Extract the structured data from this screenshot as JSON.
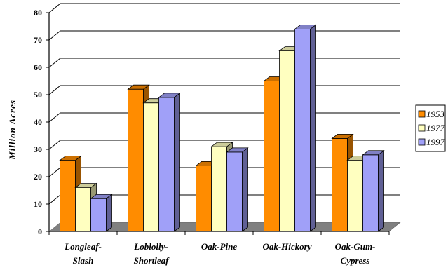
{
  "chart_data": {
    "type": "bar",
    "categories": [
      "Longleaf-\nSlash",
      "Loblolly-\nShortleaf",
      "Oak-Pine",
      "Oak-Hickory",
      "Oak-Gum-\nCypress"
    ],
    "series": [
      {
        "name": "1953",
        "values": [
          26,
          52,
          24,
          55,
          34
        ],
        "color": "#ff8c00"
      },
      {
        "name": "1977",
        "values": [
          16,
          47,
          31,
          66,
          26
        ],
        "color": "#ffffc0"
      },
      {
        "name": "1997",
        "values": [
          12,
          49,
          29,
          74,
          28
        ],
        "color": "#a0a0f8"
      }
    ],
    "title": "",
    "xlabel": "",
    "ylabel": "Million Acres",
    "ylim": [
      0,
      80
    ],
    "yticks": [
      0,
      10,
      20,
      30,
      40,
      50,
      60,
      70,
      80
    ],
    "grid": true,
    "legend": "right",
    "floor_color": "#808080",
    "bar_outline": "#000000"
  }
}
